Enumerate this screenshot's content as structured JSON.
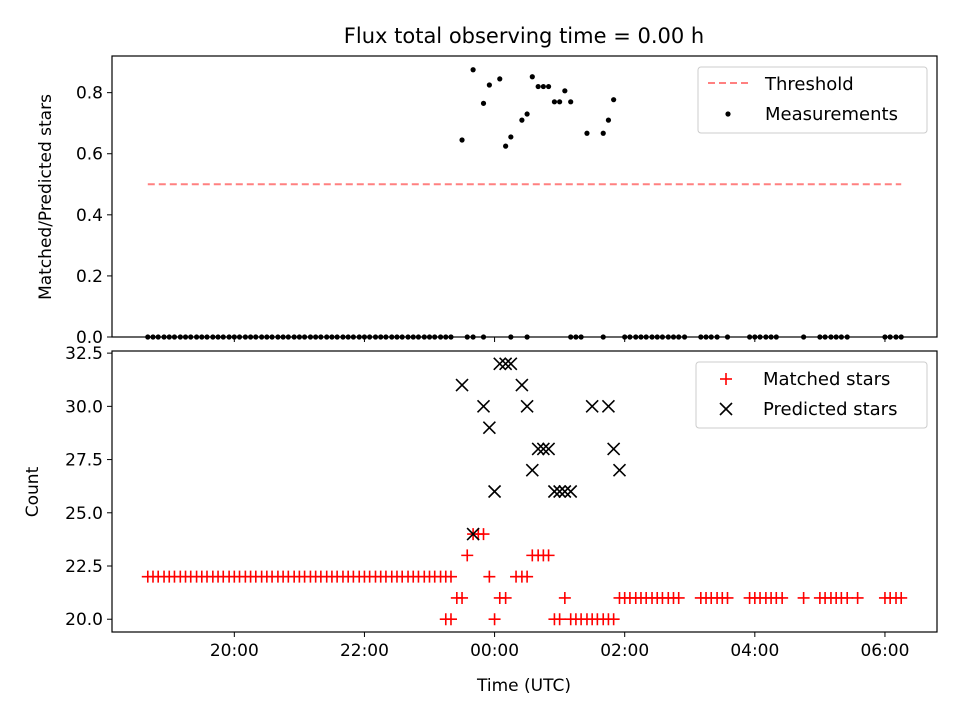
{
  "figure": {
    "title": "Flux total observing time = 0.00 h"
  },
  "chart_data": [
    {
      "type": "scatter",
      "title": "Flux total observing time = 0.00 h",
      "xlabel": "",
      "ylabel": "Matched/Predicted stars",
      "xlim": [
        18.12,
        30.8
      ],
      "ylim": [
        0,
        0.92
      ],
      "xtick_values": [
        20,
        22,
        24,
        26,
        28,
        30
      ],
      "yticks": [
        0.0,
        0.2,
        0.4,
        0.6,
        0.8
      ],
      "ytick_labels": [
        "0.0",
        "0.2",
        "0.4",
        "0.6",
        "0.8"
      ],
      "grid": false,
      "legend_position": "upper right",
      "threshold": {
        "name": "Threshold",
        "value": 0.5,
        "x_range": [
          18.67,
          30.25
        ],
        "color": "#ff8080",
        "style": "dashed"
      },
      "series": [
        {
          "name": "Measurements",
          "color": "#000000",
          "marker": "dot",
          "points": [
            [
              18.67,
              0
            ],
            [
              18.75,
              0
            ],
            [
              18.83,
              0
            ],
            [
              18.92,
              0
            ],
            [
              19.0,
              0
            ],
            [
              19.08,
              0
            ],
            [
              19.17,
              0
            ],
            [
              19.25,
              0
            ],
            [
              19.33,
              0
            ],
            [
              19.42,
              0
            ],
            [
              19.5,
              0
            ],
            [
              19.58,
              0
            ],
            [
              19.67,
              0
            ],
            [
              19.75,
              0
            ],
            [
              19.83,
              0
            ],
            [
              19.92,
              0
            ],
            [
              20.0,
              0
            ],
            [
              20.08,
              0
            ],
            [
              20.17,
              0
            ],
            [
              20.25,
              0
            ],
            [
              20.33,
              0
            ],
            [
              20.42,
              0
            ],
            [
              20.5,
              0
            ],
            [
              20.58,
              0
            ],
            [
              20.67,
              0
            ],
            [
              20.75,
              0
            ],
            [
              20.83,
              0
            ],
            [
              20.92,
              0
            ],
            [
              21.0,
              0
            ],
            [
              21.08,
              0
            ],
            [
              21.17,
              0
            ],
            [
              21.25,
              0
            ],
            [
              21.33,
              0
            ],
            [
              21.42,
              0
            ],
            [
              21.5,
              0
            ],
            [
              21.58,
              0
            ],
            [
              21.67,
              0
            ],
            [
              21.75,
              0
            ],
            [
              21.83,
              0
            ],
            [
              21.92,
              0
            ],
            [
              22.0,
              0
            ],
            [
              22.08,
              0
            ],
            [
              22.17,
              0
            ],
            [
              22.25,
              0
            ],
            [
              22.33,
              0
            ],
            [
              22.42,
              0
            ],
            [
              22.5,
              0
            ],
            [
              22.58,
              0
            ],
            [
              22.67,
              0
            ],
            [
              22.75,
              0
            ],
            [
              22.83,
              0
            ],
            [
              22.92,
              0
            ],
            [
              23.0,
              0
            ],
            [
              23.08,
              0
            ],
            [
              23.17,
              0
            ],
            [
              23.25,
              0
            ],
            [
              23.33,
              0
            ],
            [
              23.58,
              0
            ],
            [
              23.67,
              0
            ],
            [
              23.83,
              0
            ],
            [
              24.25,
              0
            ],
            [
              24.5,
              0
            ],
            [
              25.17,
              0
            ],
            [
              25.25,
              0
            ],
            [
              25.33,
              0
            ],
            [
              25.67,
              0
            ],
            [
              26.0,
              0
            ],
            [
              26.08,
              0
            ],
            [
              26.17,
              0
            ],
            [
              26.25,
              0
            ],
            [
              26.33,
              0
            ],
            [
              26.42,
              0
            ],
            [
              26.5,
              0
            ],
            [
              26.58,
              0
            ],
            [
              26.67,
              0
            ],
            [
              26.75,
              0
            ],
            [
              26.83,
              0
            ],
            [
              26.92,
              0
            ],
            [
              27.17,
              0
            ],
            [
              27.25,
              0
            ],
            [
              27.33,
              0
            ],
            [
              27.42,
              0
            ],
            [
              27.58,
              0
            ],
            [
              27.92,
              0
            ],
            [
              28.0,
              0
            ],
            [
              28.08,
              0
            ],
            [
              28.17,
              0
            ],
            [
              28.25,
              0
            ],
            [
              28.33,
              0
            ],
            [
              28.75,
              0
            ],
            [
              29.0,
              0
            ],
            [
              29.08,
              0
            ],
            [
              29.17,
              0
            ],
            [
              29.25,
              0
            ],
            [
              29.33,
              0
            ],
            [
              29.42,
              0
            ],
            [
              30.0,
              0
            ],
            [
              30.08,
              0
            ],
            [
              30.17,
              0
            ],
            [
              30.25,
              0
            ],
            [
              23.5,
              0.645
            ],
            [
              23.67,
              0.875
            ],
            [
              23.83,
              0.765
            ],
            [
              23.92,
              0.825
            ],
            [
              24.08,
              0.845
            ],
            [
              24.17,
              0.625
            ],
            [
              24.25,
              0.655
            ],
            [
              24.42,
              0.71
            ],
            [
              24.5,
              0.73
            ],
            [
              24.58,
              0.852
            ],
            [
              24.67,
              0.82
            ],
            [
              24.75,
              0.82
            ],
            [
              24.83,
              0.82
            ],
            [
              24.92,
              0.77
            ],
            [
              25.0,
              0.77
            ],
            [
              25.08,
              0.806
            ],
            [
              25.17,
              0.77
            ],
            [
              25.42,
              0.667
            ],
            [
              25.67,
              0.667
            ],
            [
              25.75,
              0.71
            ],
            [
              25.83,
              0.777
            ]
          ]
        }
      ]
    },
    {
      "type": "scatter",
      "xlabel": "Time (UTC)",
      "ylabel": "Count",
      "xlim": [
        18.12,
        30.8
      ],
      "ylim": [
        19.4,
        32.6
      ],
      "xticks": [
        20,
        22,
        24,
        26,
        28,
        30
      ],
      "xtick_labels": [
        "20:00",
        "22:00",
        "00:00",
        "02:00",
        "04:00",
        "06:00"
      ],
      "yticks": [
        20.0,
        22.5,
        25.0,
        27.5,
        30.0,
        32.5
      ],
      "ytick_labels": [
        "20.0",
        "22.5",
        "25.0",
        "27.5",
        "30.0",
        "32.5"
      ],
      "grid": false,
      "legend_position": "upper right",
      "series": [
        {
          "name": "Matched stars",
          "color": "#ff0000",
          "marker": "plus",
          "points": [
            [
              18.67,
              22
            ],
            [
              18.75,
              22
            ],
            [
              18.83,
              22
            ],
            [
              18.92,
              22
            ],
            [
              19.0,
              22
            ],
            [
              19.08,
              22
            ],
            [
              19.17,
              22
            ],
            [
              19.25,
              22
            ],
            [
              19.33,
              22
            ],
            [
              19.42,
              22
            ],
            [
              19.5,
              22
            ],
            [
              19.58,
              22
            ],
            [
              19.67,
              22
            ],
            [
              19.75,
              22
            ],
            [
              19.83,
              22
            ],
            [
              19.92,
              22
            ],
            [
              20.0,
              22
            ],
            [
              20.08,
              22
            ],
            [
              20.17,
              22
            ],
            [
              20.25,
              22
            ],
            [
              20.33,
              22
            ],
            [
              20.42,
              22
            ],
            [
              20.5,
              22
            ],
            [
              20.58,
              22
            ],
            [
              20.67,
              22
            ],
            [
              20.75,
              22
            ],
            [
              20.83,
              22
            ],
            [
              20.92,
              22
            ],
            [
              21.0,
              22
            ],
            [
              21.08,
              22
            ],
            [
              21.17,
              22
            ],
            [
              21.25,
              22
            ],
            [
              21.33,
              22
            ],
            [
              21.42,
              22
            ],
            [
              21.5,
              22
            ],
            [
              21.58,
              22
            ],
            [
              21.67,
              22
            ],
            [
              21.75,
              22
            ],
            [
              21.83,
              22
            ],
            [
              21.92,
              22
            ],
            [
              22.0,
              22
            ],
            [
              22.08,
              22
            ],
            [
              22.17,
              22
            ],
            [
              22.25,
              22
            ],
            [
              22.33,
              22
            ],
            [
              22.42,
              22
            ],
            [
              22.5,
              22
            ],
            [
              22.58,
              22
            ],
            [
              22.67,
              22
            ],
            [
              22.75,
              22
            ],
            [
              22.83,
              22
            ],
            [
              22.92,
              22
            ],
            [
              23.0,
              22
            ],
            [
              23.08,
              22
            ],
            [
              23.17,
              22
            ],
            [
              23.25,
              22
            ],
            [
              23.33,
              22
            ],
            [
              23.25,
              20
            ],
            [
              23.33,
              20
            ],
            [
              23.42,
              21
            ],
            [
              23.5,
              21
            ],
            [
              23.58,
              23
            ],
            [
              23.67,
              24
            ],
            [
              23.75,
              24
            ],
            [
              23.83,
              24
            ],
            [
              23.92,
              22
            ],
            [
              24.0,
              20
            ],
            [
              24.08,
              21
            ],
            [
              24.17,
              21
            ],
            [
              24.33,
              22
            ],
            [
              24.42,
              22
            ],
            [
              24.5,
              22
            ],
            [
              24.58,
              23
            ],
            [
              24.67,
              23
            ],
            [
              24.75,
              23
            ],
            [
              24.83,
              23
            ],
            [
              24.92,
              20
            ],
            [
              25.0,
              20
            ],
            [
              25.08,
              21
            ],
            [
              25.17,
              20
            ],
            [
              25.25,
              20
            ],
            [
              25.33,
              20
            ],
            [
              25.42,
              20
            ],
            [
              25.5,
              20
            ],
            [
              25.58,
              20
            ],
            [
              25.67,
              20
            ],
            [
              25.75,
              20
            ],
            [
              25.83,
              20
            ],
            [
              25.92,
              21
            ],
            [
              26.0,
              21
            ],
            [
              26.08,
              21
            ],
            [
              26.17,
              21
            ],
            [
              26.25,
              21
            ],
            [
              26.33,
              21
            ],
            [
              26.42,
              21
            ],
            [
              26.5,
              21
            ],
            [
              26.58,
              21
            ],
            [
              26.67,
              21
            ],
            [
              26.75,
              21
            ],
            [
              26.83,
              21
            ],
            [
              27.17,
              21
            ],
            [
              27.25,
              21
            ],
            [
              27.33,
              21
            ],
            [
              27.42,
              21
            ],
            [
              27.5,
              21
            ],
            [
              27.58,
              21
            ],
            [
              27.92,
              21
            ],
            [
              28.0,
              21
            ],
            [
              28.08,
              21
            ],
            [
              28.17,
              21
            ],
            [
              28.25,
              21
            ],
            [
              28.33,
              21
            ],
            [
              28.42,
              21
            ],
            [
              28.75,
              21
            ],
            [
              29.0,
              21
            ],
            [
              29.08,
              21
            ],
            [
              29.17,
              21
            ],
            [
              29.25,
              21
            ],
            [
              29.33,
              21
            ],
            [
              29.42,
              21
            ],
            [
              29.58,
              21
            ],
            [
              30.0,
              21
            ],
            [
              30.08,
              21
            ],
            [
              30.17,
              21
            ],
            [
              30.25,
              21
            ]
          ]
        },
        {
          "name": "Predicted stars",
          "color": "#000000",
          "marker": "x",
          "points": [
            [
              23.5,
              31
            ],
            [
              23.67,
              24
            ],
            [
              23.83,
              30
            ],
            [
              23.92,
              29
            ],
            [
              24.0,
              26
            ],
            [
              24.08,
              32
            ],
            [
              24.17,
              32
            ],
            [
              24.25,
              32
            ],
            [
              24.42,
              31
            ],
            [
              24.5,
              30
            ],
            [
              24.58,
              27
            ],
            [
              24.67,
              28
            ],
            [
              24.75,
              28
            ],
            [
              24.83,
              28
            ],
            [
              24.92,
              26
            ],
            [
              25.0,
              26
            ],
            [
              25.08,
              26
            ],
            [
              25.17,
              26
            ],
            [
              25.5,
              30
            ],
            [
              25.75,
              30
            ],
            [
              25.83,
              28
            ],
            [
              25.92,
              27
            ]
          ]
        }
      ]
    }
  ]
}
